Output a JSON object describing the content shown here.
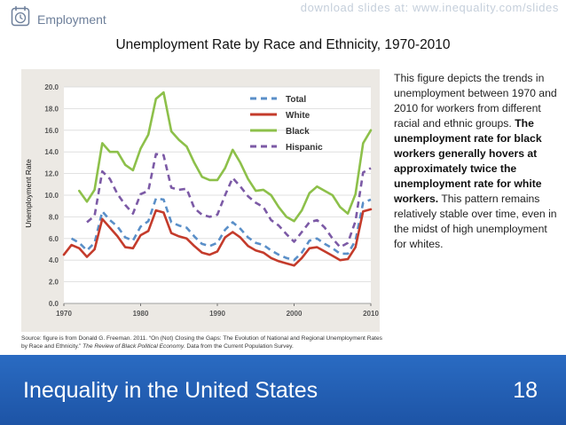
{
  "header": {
    "section_label": "Employment",
    "watermark": "download slides at: www.inequality.com/slides",
    "icon": "calendar-clock-icon"
  },
  "slide": {
    "description_intro": "This figure depicts the trends in unemployment between 1970 and 2010 for workers from different racial and ethnic groups.",
    "description_bold": "The unemployment rate for black workers generally hovers at approximately twice the unemployment rate for white workers.",
    "description_outro": "This pattern remains relatively stable over time, even in the midst of high unemployment for whites.",
    "source_lead": "Source: figure is from Donald G. Freeman. 2011. “On (Not) Closing the Gaps: The Evolution of National and Regional Unemployment Rates by Race and Ethnicity.”",
    "source_journal": "The Review of Black Political Economy.",
    "source_tail": "Data from the Current Population Survey."
  },
  "footer": {
    "title": "Inequality in the United States",
    "page_number": "18",
    "background": "#2260b5"
  },
  "chart_data": {
    "type": "line",
    "title": "Unemployment Rate by Race and Ethnicity, 1970-2010",
    "xlabel": "",
    "ylabel": "Unemployment Rate",
    "x_ticks": [
      1970,
      1980,
      1990,
      2000,
      2010
    ],
    "y_ticks": [
      "0.0",
      "2.0",
      "4.0",
      "6.0",
      "8.0",
      "10.0",
      "12.0",
      "14.0",
      "16.0",
      "18.0",
      "20.0"
    ],
    "xlim": [
      1970,
      2010
    ],
    "ylim": [
      0,
      20
    ],
    "grid": true,
    "legend_position": "top-right",
    "series": [
      {
        "name": "Total",
        "color": "#5a8fc8",
        "style": "dashed",
        "x": [
          1971,
          1972,
          1973,
          1974,
          1975,
          1976,
          1977,
          1978,
          1979,
          1980,
          1981,
          1982,
          1983,
          1984,
          1985,
          1986,
          1987,
          1988,
          1989,
          1990,
          1991,
          1992,
          1993,
          1994,
          1995,
          1996,
          1997,
          1998,
          1999,
          2000,
          2001,
          2002,
          2003,
          2004,
          2005,
          2006,
          2007,
          2008,
          2009,
          2010
        ],
        "values": [
          6.0,
          5.6,
          4.9,
          5.6,
          8.5,
          7.7,
          7.1,
          6.1,
          5.8,
          7.1,
          7.6,
          9.7,
          9.6,
          7.5,
          7.2,
          7.0,
          6.2,
          5.5,
          5.3,
          5.6,
          6.8,
          7.5,
          6.9,
          6.1,
          5.6,
          5.4,
          4.9,
          4.5,
          4.2,
          4.0,
          4.7,
          5.8,
          6.0,
          5.5,
          5.1,
          4.6,
          4.6,
          5.8,
          9.3,
          9.6
        ]
      },
      {
        "name": "White",
        "color": "#c43b2b",
        "style": "solid",
        "x": [
          1970,
          1971,
          1972,
          1973,
          1974,
          1975,
          1976,
          1977,
          1978,
          1979,
          1980,
          1981,
          1982,
          1983,
          1984,
          1985,
          1986,
          1987,
          1988,
          1989,
          1990,
          1991,
          1992,
          1993,
          1994,
          1995,
          1996,
          1997,
          1998,
          1999,
          2000,
          2001,
          2002,
          2003,
          2004,
          2005,
          2006,
          2007,
          2008,
          2009,
          2010
        ],
        "values": [
          4.5,
          5.4,
          5.1,
          4.3,
          5.0,
          7.8,
          7.0,
          6.2,
          5.2,
          5.1,
          6.3,
          6.7,
          8.6,
          8.4,
          6.5,
          6.2,
          6.0,
          5.3,
          4.7,
          4.5,
          4.8,
          6.1,
          6.6,
          6.1,
          5.3,
          4.9,
          4.7,
          4.2,
          3.9,
          3.7,
          3.5,
          4.2,
          5.1,
          5.2,
          4.8,
          4.4,
          4.0,
          4.1,
          5.2,
          8.5,
          8.7
        ]
      },
      {
        "name": "Black",
        "color": "#8dc04a",
        "style": "solid",
        "x": [
          1972,
          1973,
          1974,
          1975,
          1976,
          1977,
          1978,
          1979,
          1980,
          1981,
          1982,
          1983,
          1984,
          1985,
          1986,
          1987,
          1988,
          1989,
          1990,
          1991,
          1992,
          1993,
          1994,
          1995,
          1996,
          1997,
          1998,
          1999,
          2000,
          2001,
          2002,
          2003,
          2004,
          2005,
          2006,
          2007,
          2008,
          2009,
          2010
        ],
        "values": [
          10.4,
          9.4,
          10.5,
          14.8,
          14.0,
          14.0,
          12.8,
          12.3,
          14.3,
          15.6,
          18.9,
          19.5,
          15.9,
          15.1,
          14.5,
          13.0,
          11.7,
          11.4,
          11.4,
          12.5,
          14.2,
          13.0,
          11.5,
          10.4,
          10.5,
          10.0,
          8.9,
          8.0,
          7.6,
          8.6,
          10.2,
          10.8,
          10.4,
          10.0,
          8.9,
          8.3,
          10.1,
          14.8,
          16.0
        ]
      },
      {
        "name": "Hispanic",
        "color": "#7c5aa6",
        "style": "dashed",
        "x": [
          1973,
          1974,
          1975,
          1976,
          1977,
          1978,
          1979,
          1980,
          1981,
          1982,
          1983,
          1984,
          1985,
          1986,
          1987,
          1988,
          1989,
          1990,
          1991,
          1992,
          1993,
          1994,
          1995,
          1996,
          1997,
          1998,
          1999,
          2000,
          2001,
          2002,
          2003,
          2004,
          2005,
          2006,
          2007,
          2008,
          2009,
          2010
        ],
        "values": [
          7.5,
          8.1,
          12.2,
          11.5,
          10.1,
          9.1,
          8.3,
          10.1,
          10.4,
          13.8,
          13.7,
          10.7,
          10.5,
          10.6,
          8.8,
          8.2,
          8.0,
          8.2,
          10.0,
          11.6,
          10.8,
          9.9,
          9.3,
          8.9,
          7.7,
          7.2,
          6.4,
          5.7,
          6.6,
          7.5,
          7.7,
          7.0,
          6.0,
          5.2,
          5.6,
          7.6,
          12.1,
          12.5
        ]
      }
    ]
  }
}
